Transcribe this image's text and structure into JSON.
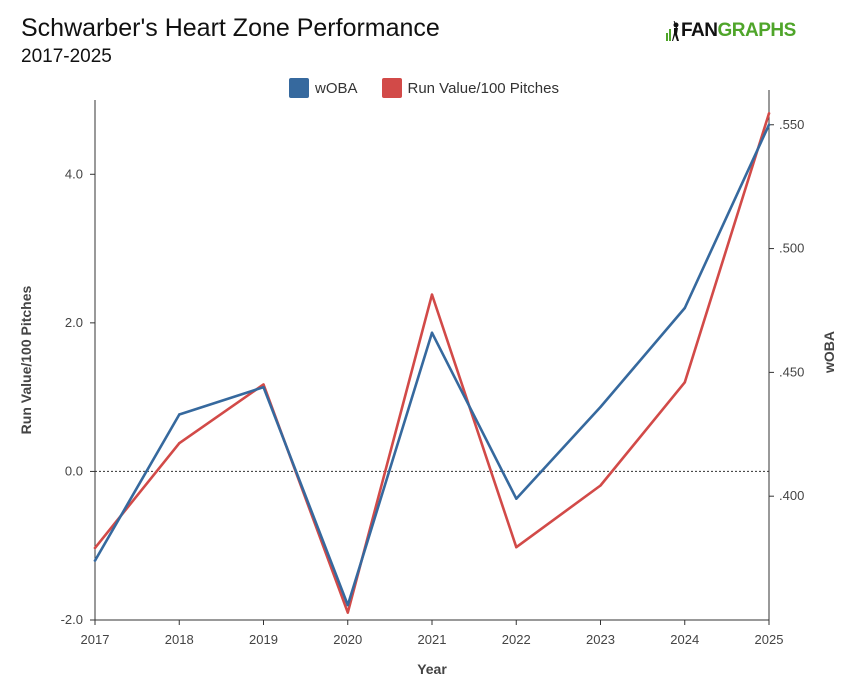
{
  "header": {
    "title": "Schwarber's Heart Zone Performance",
    "subtitle": "2017-2025"
  },
  "logo": {
    "part1": "FAN",
    "part2": "GRAPHS",
    "color1": "#111111",
    "color2": "#4fa52a"
  },
  "chart_data": {
    "type": "line",
    "x": [
      2017,
      2018,
      2019,
      2020,
      2021,
      2022,
      2023,
      2024,
      2025
    ],
    "xlabel": "Year",
    "series": [
      {
        "name": "wOBA",
        "axis": "right",
        "color": "#36699e",
        "values": [
          0.374,
          0.433,
          0.444,
          0.356,
          0.466,
          0.399,
          0.436,
          0.476,
          0.55
        ]
      },
      {
        "name": "Run Value/100 Pitches",
        "axis": "left",
        "color": "#d24a48",
        "values": [
          -1.03,
          0.38,
          1.17,
          -1.9,
          2.38,
          -1.02,
          -0.19,
          1.2,
          4.82
        ]
      }
    ],
    "y_left": {
      "label": "Run Value/100 Pitches",
      "ylim": [
        -2.0,
        5.0
      ],
      "ticks": [
        -2.0,
        0.0,
        2.0,
        4.0
      ],
      "tick_labels": [
        "-2.0",
        "0.0",
        "2.0",
        "4.0"
      ]
    },
    "y_right": {
      "label": "wOBA",
      "ylim": [
        0.35,
        0.56
      ],
      "ticks": [
        0.4,
        0.45,
        0.5,
        0.55
      ],
      "tick_labels": [
        ".400",
        ".450",
        ".500",
        ".550"
      ]
    },
    "reference_line": {
      "axis": "left",
      "value": 0.0,
      "style": "dotted"
    },
    "legend_position": "top-center",
    "grid": false
  }
}
